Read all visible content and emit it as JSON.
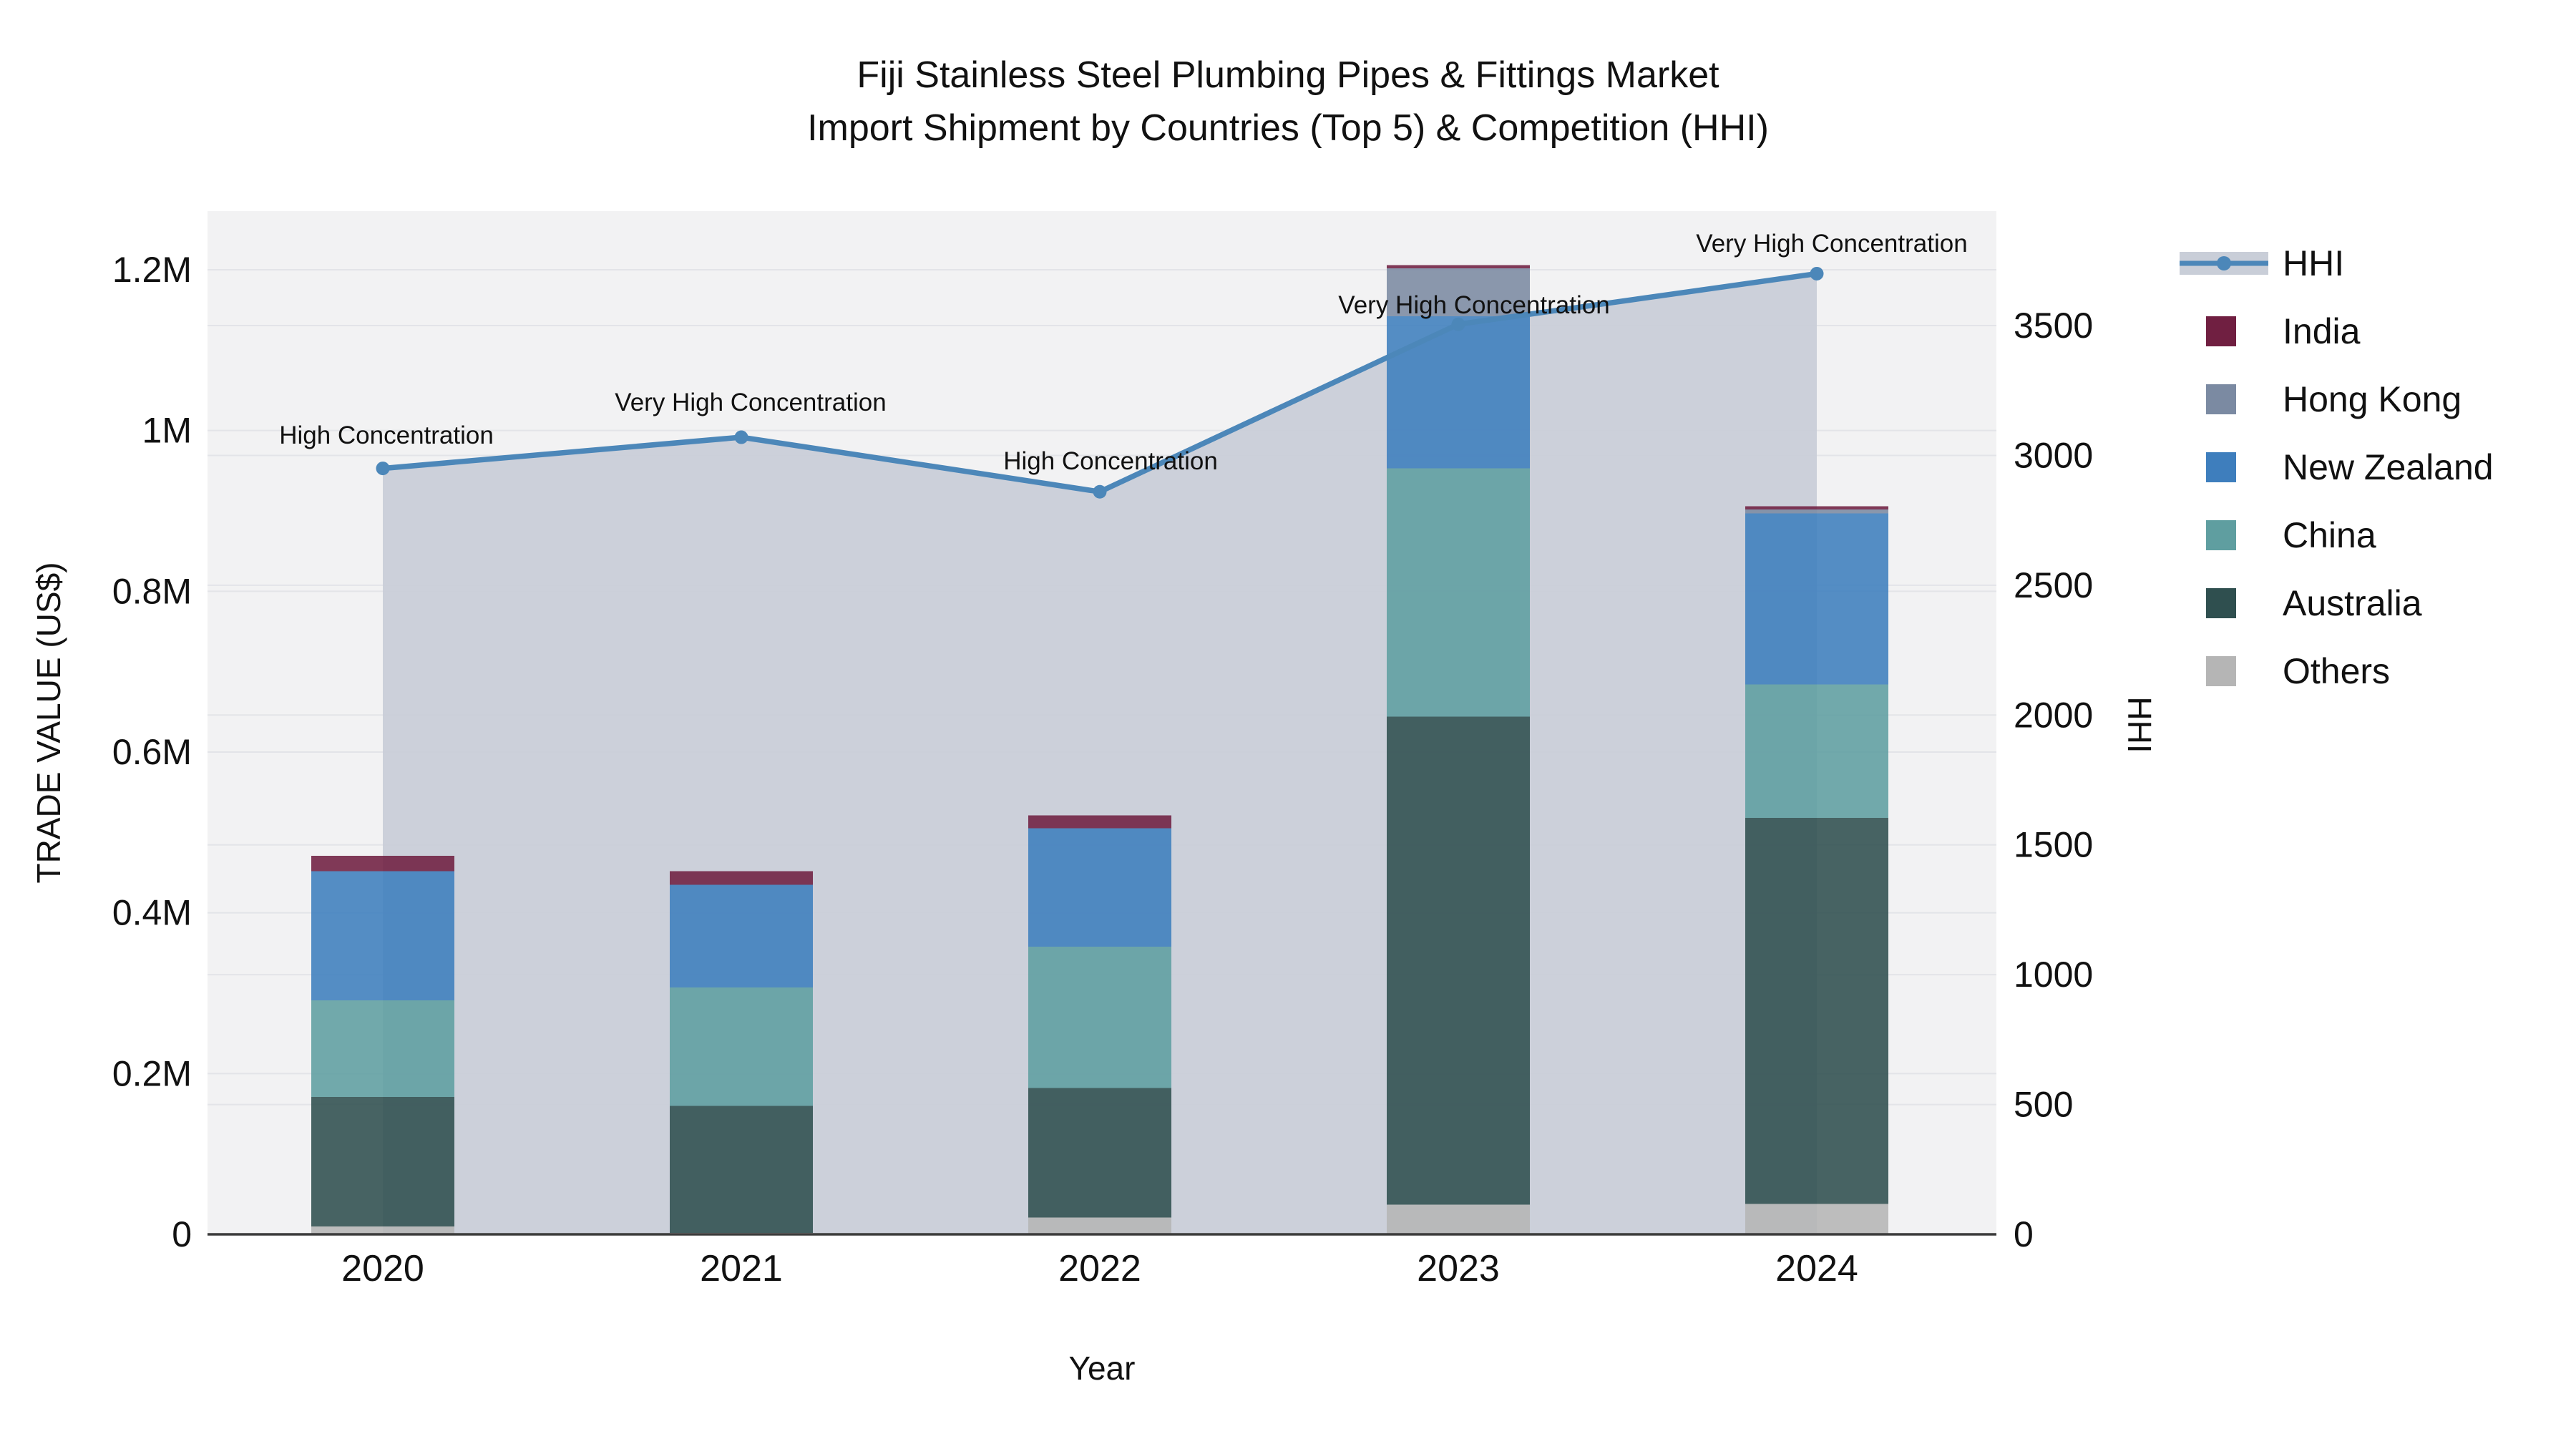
{
  "title": {
    "line1": "Fiji Stainless Steel Plumbing Pipes & Fittings Market",
    "line2": "Import Shipment by Countries (Top 5) & Competition (HHI)"
  },
  "axes": {
    "x_title": "Year",
    "y_left_title": "TRADE VALUE (US$)",
    "y_right_title": "HHI",
    "y_left_ticks": [
      {
        "label": "0",
        "value": 0
      },
      {
        "label": "0.2M",
        "value": 200000
      },
      {
        "label": "0.4M",
        "value": 400000
      },
      {
        "label": "0.6M",
        "value": 600000
      },
      {
        "label": "0.8M",
        "value": 800000
      },
      {
        "label": "1M",
        "value": 1000000
      },
      {
        "label": "1.2M",
        "value": 1200000
      }
    ],
    "y_right_ticks": [
      {
        "label": "0",
        "value": 0
      },
      {
        "label": "500",
        "value": 500
      },
      {
        "label": "1000",
        "value": 1000
      },
      {
        "label": "1500",
        "value": 1500
      },
      {
        "label": "2000",
        "value": 2000
      },
      {
        "label": "2500",
        "value": 2500
      },
      {
        "label": "3000",
        "value": 3000
      },
      {
        "label": "3500",
        "value": 3500
      }
    ]
  },
  "chart_data": {
    "type": "bar+line",
    "title": "Fiji Stainless Steel Plumbing Pipes & Fittings Market — Import Shipment by Countries (Top 5) & Competition (HHI)",
    "xlabel": "Year",
    "ylabel_left": "TRADE VALUE (US$)",
    "ylabel_right": "HHI",
    "categories": [
      "2020",
      "2021",
      "2022",
      "2023",
      "2024"
    ],
    "stack_order_bottom_to_top": [
      "Others",
      "Australia",
      "China",
      "New Zealand",
      "Hong Kong",
      "India"
    ],
    "series": [
      {
        "name": "India",
        "color": "#701F41",
        "values": [
          19000,
          17000,
          16000,
          4000,
          4000
        ]
      },
      {
        "name": "Hong Kong",
        "color": "#7B8AA2",
        "values": [
          0,
          0,
          0,
          60000,
          5000
        ]
      },
      {
        "name": "New Zealand",
        "color": "#3E7EBD",
        "values": [
          161000,
          128000,
          147000,
          189000,
          213000
        ]
      },
      {
        "name": "China",
        "color": "#5F9EA0",
        "values": [
          120000,
          147000,
          176000,
          309000,
          166000
        ]
      },
      {
        "name": "Australia",
        "color": "#2F4F4F",
        "values": [
          161000,
          158000,
          161000,
          607000,
          480000
        ]
      },
      {
        "name": "Others",
        "color": "#B5B5B5",
        "values": [
          10000,
          2000,
          21000,
          37000,
          38000
        ]
      }
    ],
    "bar_totals": [
      471000,
      452000,
      521000,
      1206000,
      906000
    ],
    "line": {
      "name": "HHI",
      "color": "#4C87B9",
      "area_color": "#C9CED8",
      "values": [
        2950,
        3070,
        2860,
        3505,
        3700
      ]
    },
    "annotations": [
      {
        "text": "High Concentration",
        "year": "2020"
      },
      {
        "text": "Very High Concentration",
        "year": "2021"
      },
      {
        "text": "High Concentration",
        "year": "2022"
      },
      {
        "text": "Very High Concentration",
        "year": "2023"
      },
      {
        "text": "Very High Concentration",
        "year": "2024"
      }
    ],
    "ylim_left": [
      0,
      1273000
    ],
    "ylim_right": [
      0,
      3941
    ],
    "grid": true,
    "legend_position": "right",
    "legend_order": [
      "HHI",
      "India",
      "Hong Kong",
      "New Zealand",
      "China",
      "Australia",
      "Others"
    ],
    "plot_bg_color": "#F2F2F3",
    "grid_color": "#E3E4E8",
    "axis_line_color": "#3B3B3B"
  }
}
